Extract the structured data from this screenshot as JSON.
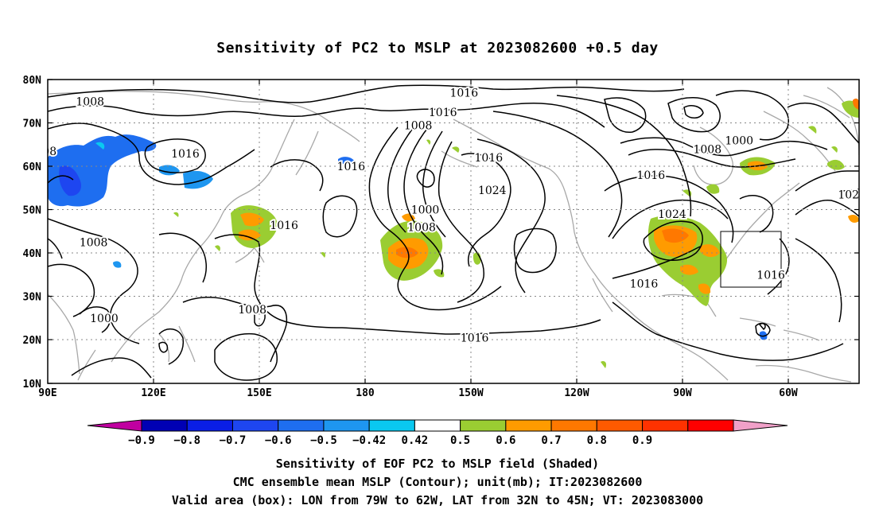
{
  "title": "Sensitivity of PC2 to MSLP at 2023082600 +0.5 day",
  "map": {
    "lat_labels": [
      "80N",
      "70N",
      "60N",
      "50N",
      "40N",
      "30N",
      "20N",
      "10N"
    ],
    "lon_labels": [
      "90E",
      "120E",
      "150E",
      "180",
      "150W",
      "120W",
      "90W",
      "60W"
    ],
    "lon_range": [
      90,
      320
    ],
    "lat_range": [
      10,
      80
    ],
    "contour_unit": "mb",
    "contour_labels": [
      {
        "text": "1016",
        "lon": 208,
        "lat": 77
      },
      {
        "text": "1016",
        "lon": 202,
        "lat": 72.5
      },
      {
        "text": "1008",
        "lon": 195,
        "lat": 69.5
      },
      {
        "text": "1016",
        "lon": 215,
        "lat": 62
      },
      {
        "text": "1024",
        "lon": 216,
        "lat": 54.5
      },
      {
        "text": "1000",
        "lon": 197,
        "lat": 50
      },
      {
        "text": "1008",
        "lon": 196,
        "lat": 46
      },
      {
        "text": "1016",
        "lon": 176,
        "lat": 60
      },
      {
        "text": "1016",
        "lon": 157,
        "lat": 46.5
      },
      {
        "text": "1008",
        "lon": 148,
        "lat": 27
      },
      {
        "text": "1016",
        "lon": 211,
        "lat": 20.5
      },
      {
        "text": "1016",
        "lon": 259,
        "lat": 33
      },
      {
        "text": "1024",
        "lon": 267,
        "lat": 49
      },
      {
        "text": "1016",
        "lon": 261,
        "lat": 58
      },
      {
        "text": "1008",
        "lon": 277,
        "lat": 64
      },
      {
        "text": "1000",
        "lon": 286,
        "lat": 66
      },
      {
        "text": "1016",
        "lon": 295,
        "lat": 35
      },
      {
        "text": "1008",
        "lon": 102,
        "lat": 75
      },
      {
        "text": "1016",
        "lon": 129,
        "lat": 63
      },
      {
        "text": "1008",
        "lon": 103,
        "lat": 42.5
      },
      {
        "text": "1000",
        "lon": 106,
        "lat": 25
      },
      {
        "text": "08",
        "lon": 90.5,
        "lat": 63.5
      },
      {
        "text": "102",
        "lon": 317,
        "lat": 53.5
      }
    ],
    "valid_box": {
      "lon_w": -79,
      "lon_e": -62,
      "lat_s": 32,
      "lat_n": 45
    }
  },
  "colorbar": {
    "colors": [
      "#c000a0",
      "#0000b4",
      "#0a1ee6",
      "#1e46f0",
      "#1e6ef0",
      "#1e96f0",
      "#0ac8f0",
      "#ffffff",
      "#9acd32",
      "#ff9b00",
      "#ff7800",
      "#ff5a00",
      "#ff3200",
      "#ff0000",
      "#f0a0c8"
    ],
    "tick_labels": [
      "−0.9",
      "−0.8",
      "−0.7",
      "−0.6",
      "−0.5",
      "−0.42",
      "0.42",
      "0.5",
      "0.6",
      "0.7",
      "0.8",
      "0.9"
    ]
  },
  "caption": {
    "line1": "Sensitivity of EOF PC2 to MSLP field (Shaded)",
    "line2": "CMC ensemble mean MSLP (Contour); unit(mb); IT:2023082600",
    "line3": "Valid area (box): LON from 79W to 62W, LAT from 32N to 45N; VT: 2023083000"
  }
}
